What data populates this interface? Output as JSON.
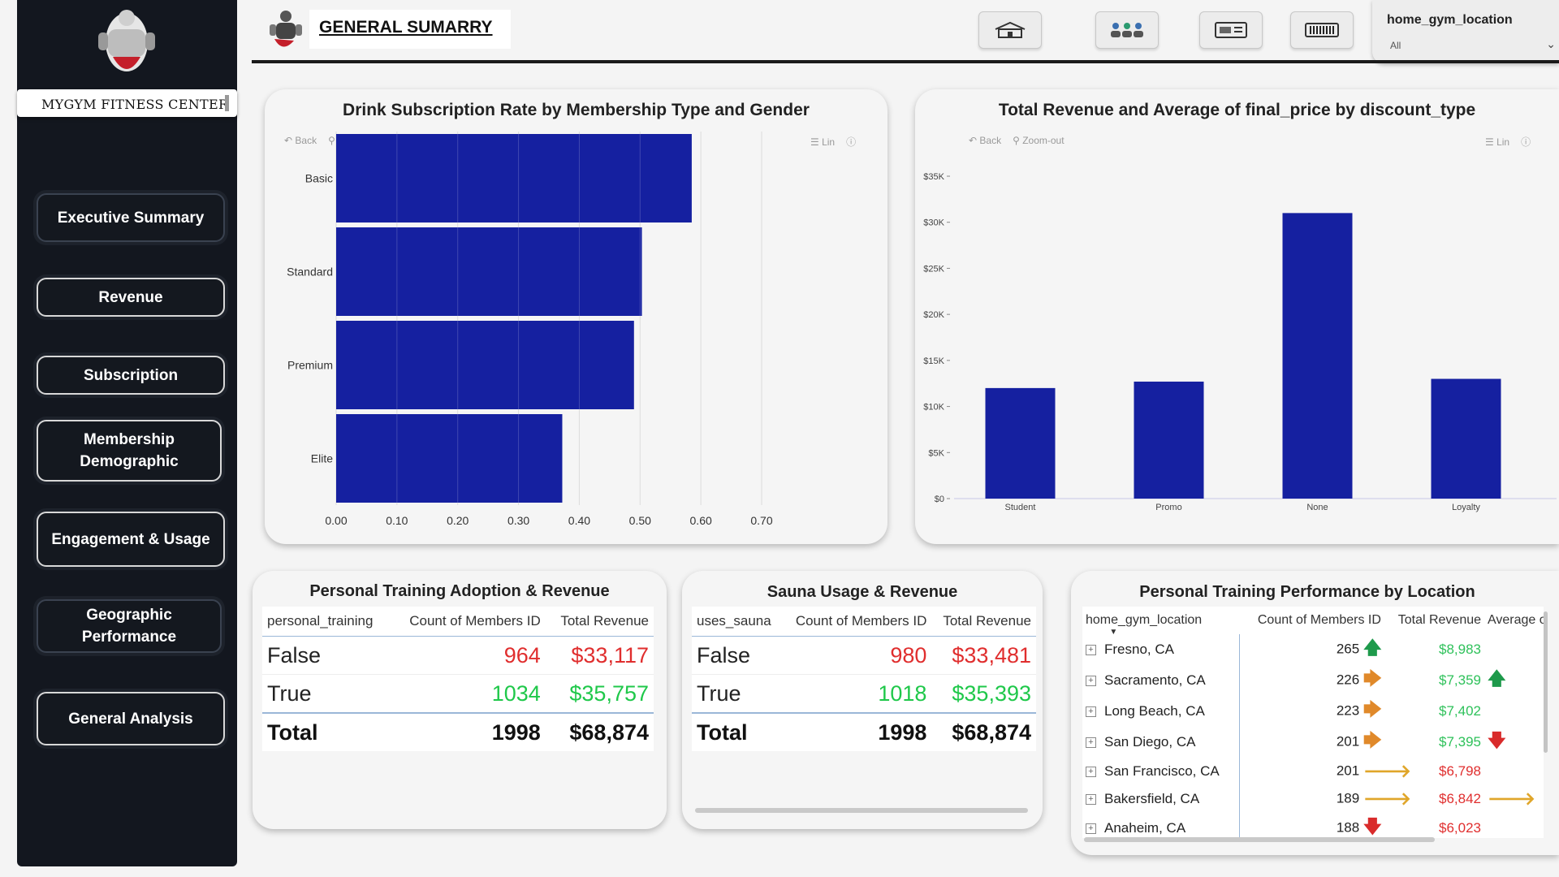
{
  "sidebar": {
    "brand": "MYGYM FITNESS CENTER",
    "nav": [
      {
        "label": "Executive Summary"
      },
      {
        "label": "Revenue"
      },
      {
        "label": "Subscription"
      },
      {
        "label": "Membership Demographic"
      },
      {
        "label": "Engagement & Usage"
      },
      {
        "label": "Geographic Performance"
      },
      {
        "label": "General Analysis"
      }
    ]
  },
  "header": {
    "title": "GENERAL SUMARRY",
    "buttons": [
      "home-icon",
      "people-icon",
      "card-icon",
      "barcode-icon"
    ],
    "slicer": {
      "title": "home_gym_location",
      "value": "All"
    }
  },
  "toolbar": {
    "back": "Back",
    "zoom": "Zoom-out",
    "lin": "Lin"
  },
  "chart_data": [
    {
      "type": "bar",
      "orientation": "horizontal",
      "title": "Drink Subscription Rate by Membership Type and Gender",
      "categories": [
        "Basic",
        "Standard",
        "Premium",
        "Elite"
      ],
      "values": [
        0.585,
        0.503,
        0.49,
        0.372
      ],
      "xticks": [
        "0.00",
        "0.10",
        "0.20",
        "0.30",
        "0.40",
        "0.50",
        "0.60",
        "0.70"
      ],
      "xlim": [
        0,
        0.7
      ],
      "color": "#1520a0",
      "grid": true
    },
    {
      "type": "bar",
      "title": "Total Revenue and Average of final_price by discount_type",
      "categories": [
        "Student",
        "Promo",
        "None",
        "Loyalty"
      ],
      "values": [
        12000,
        12700,
        31000,
        13000
      ],
      "yticks": [
        "$0",
        "$5K",
        "$10K",
        "$15K",
        "$20K",
        "$25K",
        "$30K",
        "$35K"
      ],
      "ylim": [
        0,
        35000
      ],
      "color": "#1520a0",
      "grid": false
    }
  ],
  "pt_table": {
    "title": "Personal Training Adoption & Revenue",
    "headers": [
      "personal_training",
      "Count of Members ID",
      "Total Revenue"
    ],
    "rows": [
      {
        "label": "False",
        "count": "964",
        "revenue": "$33,117"
      },
      {
        "label": "True",
        "count": "1034",
        "revenue": "$35,757"
      }
    ],
    "total": {
      "label": "Total",
      "count": "1998",
      "revenue": "$68,874"
    }
  },
  "sauna_table": {
    "title": "Sauna Usage & Revenue",
    "headers": [
      "uses_sauna",
      "Count of Members ID",
      "Total Revenue"
    ],
    "rows": [
      {
        "label": "False",
        "count": "980",
        "revenue": "$33,481"
      },
      {
        "label": "True",
        "count": "1018",
        "revenue": "$35,393"
      }
    ],
    "total": {
      "label": "Total",
      "count": "1998",
      "revenue": "$68,874"
    }
  },
  "loc_table": {
    "title": "Personal Training Performance by Location",
    "headers": [
      "home_gym_location",
      "Count of Members ID",
      "Total Revenue",
      "Average of"
    ],
    "rows": [
      {
        "name": "Fresno, CA",
        "count": "265",
        "c_arrow": "up",
        "revenue": "$8,983",
        "r_color": "green",
        "a_arrow": "up-right"
      },
      {
        "name": "Sacramento, CA",
        "count": "226",
        "c_arrow": "right",
        "revenue": "$7,359",
        "r_color": "green",
        "a_arrow": "up"
      },
      {
        "name": "Long Beach, CA",
        "count": "223",
        "c_arrow": "right",
        "revenue": "$7,402",
        "r_color": "green",
        "a_arrow": "up-right"
      },
      {
        "name": "San Diego, CA",
        "count": "201",
        "c_arrow": "right",
        "revenue": "$7,395",
        "r_color": "green",
        "a_arrow": "down"
      },
      {
        "name": "San Francisco, CA",
        "count": "201",
        "c_arrow": "down-right",
        "revenue": "$6,798",
        "r_color": "red",
        "a_arrow": "up-right"
      },
      {
        "name": "Bakersfield, CA",
        "count": "189",
        "c_arrow": "down-right",
        "revenue": "$6,842",
        "r_color": "red",
        "a_arrow": "down-right"
      },
      {
        "name": "Anaheim, CA",
        "count": "188",
        "c_arrow": "down",
        "revenue": "$6,023",
        "r_color": "red",
        "a_arrow": "up-right"
      }
    ]
  }
}
